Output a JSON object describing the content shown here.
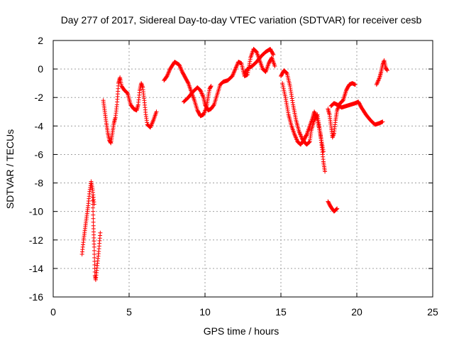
{
  "chart_data": {
    "type": "scatter",
    "title": "Day 277 of 2017, Sidereal Day-to-day VTEC variation (SDTVAR) for receiver cesb",
    "xlabel": "GPS time / hours",
    "ylabel": "SDTVAR / TECUs",
    "xlim": [
      0,
      25
    ],
    "ylim": [
      -16,
      2
    ],
    "xticks": [
      0,
      5,
      10,
      15,
      20,
      25
    ],
    "yticks": [
      -16,
      -14,
      -12,
      -10,
      -8,
      -6,
      -4,
      -2,
      0,
      2
    ],
    "xtick_labels": [
      "0",
      "5",
      "10",
      "15",
      "20",
      "25"
    ],
    "ytick_labels": [
      "-16",
      "-14",
      "-12",
      "-10",
      "-8",
      "-6",
      "-4",
      "-2",
      "0",
      "2"
    ],
    "grid": true,
    "marker": "plus",
    "color": "#ff0000",
    "segments": [
      [
        [
          1.9,
          -13.0
        ],
        [
          2.0,
          -12.0
        ],
        [
          2.1,
          -11.2
        ],
        [
          2.2,
          -10.4
        ],
        [
          2.3,
          -9.6
        ],
        [
          2.4,
          -8.6
        ],
        [
          2.5,
          -7.9
        ],
        [
          2.6,
          -8.5
        ],
        [
          2.7,
          -9.5
        ]
      ],
      [
        [
          2.6,
          -9.0
        ],
        [
          2.65,
          -11.0
        ],
        [
          2.7,
          -12.5
        ],
        [
          2.75,
          -14.5
        ],
        [
          2.8,
          -14.8
        ],
        [
          2.9,
          -13.8
        ],
        [
          3.0,
          -12.8
        ],
        [
          3.1,
          -11.5
        ]
      ],
      [
        [
          3.3,
          -2.2
        ],
        [
          3.4,
          -3.0
        ],
        [
          3.5,
          -3.8
        ],
        [
          3.6,
          -4.5
        ],
        [
          3.7,
          -5.0
        ],
        [
          3.8,
          -5.2
        ],
        [
          3.9,
          -4.5
        ],
        [
          4.0,
          -3.8
        ],
        [
          4.1,
          -3.4
        ],
        [
          4.2,
          -2.5
        ],
        [
          4.3,
          -1.0
        ],
        [
          4.4,
          -0.6
        ],
        [
          4.5,
          -1.2
        ],
        [
          4.7,
          -1.5
        ],
        [
          4.9,
          -1.7
        ],
        [
          5.1,
          -2.5
        ],
        [
          5.3,
          -2.8
        ],
        [
          5.5,
          -2.9
        ],
        [
          5.6,
          -2.5
        ],
        [
          5.7,
          -1.5
        ],
        [
          5.8,
          -1.0
        ],
        [
          5.9,
          -1.3
        ],
        [
          6.0,
          -2.2
        ],
        [
          6.1,
          -3.2
        ],
        [
          6.2,
          -3.9
        ],
        [
          6.4,
          -4.1
        ],
        [
          6.6,
          -3.6
        ],
        [
          6.8,
          -3.0
        ]
      ],
      [
        [
          7.3,
          -0.8
        ],
        [
          7.5,
          -0.5
        ],
        [
          7.7,
          0.0
        ],
        [
          8.0,
          0.5
        ],
        [
          8.3,
          0.3
        ],
        [
          8.5,
          -0.2
        ],
        [
          8.7,
          -0.6
        ],
        [
          8.9,
          -1.0
        ],
        [
          9.1,
          -1.6
        ],
        [
          9.3,
          -2.2
        ],
        [
          9.5,
          -2.9
        ],
        [
          9.7,
          -3.3
        ],
        [
          9.9,
          -3.2
        ],
        [
          10.1,
          -2.7
        ],
        [
          10.2,
          -2.0
        ],
        [
          10.3,
          -1.4
        ],
        [
          10.4,
          -1.2
        ]
      ],
      [
        [
          8.6,
          -2.3
        ],
        [
          8.9,
          -2.0
        ],
        [
          9.2,
          -1.6
        ],
        [
          9.5,
          -1.3
        ],
        [
          9.7,
          -1.5
        ],
        [
          9.9,
          -2.0
        ],
        [
          10.0,
          -2.5
        ],
        [
          10.2,
          -2.9
        ],
        [
          10.4,
          -2.8
        ],
        [
          10.6,
          -2.5
        ],
        [
          10.8,
          -1.8
        ],
        [
          11.0,
          -1.1
        ],
        [
          11.2,
          -0.9
        ],
        [
          11.5,
          -0.8
        ],
        [
          11.8,
          -0.5
        ],
        [
          12.0,
          0.0
        ],
        [
          12.2,
          0.5
        ],
        [
          12.4,
          0.4
        ],
        [
          12.6,
          -0.5
        ],
        [
          12.8,
          -0.4
        ],
        [
          13.0,
          0.8
        ],
        [
          13.2,
          1.4
        ],
        [
          13.4,
          1.2
        ],
        [
          13.6,
          0.6
        ],
        [
          13.8,
          0.0
        ],
        [
          14.0,
          -0.2
        ],
        [
          14.2,
          0.4
        ],
        [
          14.4,
          0.8
        ],
        [
          14.6,
          0.2
        ]
      ],
      [
        [
          12.6,
          -0.3
        ],
        [
          12.8,
          0.0
        ],
        [
          13.1,
          0.2
        ],
        [
          13.4,
          0.5
        ],
        [
          13.7,
          0.9
        ],
        [
          14.0,
          1.2
        ],
        [
          14.3,
          1.4
        ],
        [
          14.5,
          1.0
        ]
      ],
      [
        [
          15.0,
          -0.5
        ],
        [
          15.2,
          -0.1
        ],
        [
          15.4,
          -0.3
        ],
        [
          15.6,
          -1.2
        ],
        [
          15.8,
          -2.5
        ],
        [
          16.0,
          -3.6
        ],
        [
          16.2,
          -4.4
        ],
        [
          16.4,
          -4.9
        ],
        [
          16.6,
          -5.2
        ],
        [
          16.7,
          -5.3
        ],
        [
          16.9,
          -5.1
        ],
        [
          17.0,
          -4.3
        ],
        [
          17.2,
          -3.6
        ],
        [
          17.4,
          -3.2
        ],
        [
          17.6,
          -4.5
        ],
        [
          17.7,
          -5.5
        ],
        [
          17.8,
          -6.5
        ],
        [
          17.9,
          -7.2
        ]
      ],
      [
        [
          15.1,
          -1.0
        ],
        [
          15.3,
          -2.0
        ],
        [
          15.5,
          -3.2
        ],
        [
          15.7,
          -4.0
        ],
        [
          15.9,
          -4.6
        ],
        [
          16.1,
          -5.1
        ],
        [
          16.3,
          -5.3
        ],
        [
          16.5,
          -5.0
        ],
        [
          16.7,
          -4.6
        ],
        [
          16.9,
          -4.0
        ],
        [
          17.1,
          -3.4
        ],
        [
          17.2,
          -3.0
        ],
        [
          17.4,
          -3.5
        ],
        [
          17.6,
          -4.6
        ],
        [
          17.8,
          -5.8
        ]
      ],
      [
        [
          18.1,
          -9.3
        ],
        [
          18.3,
          -9.7
        ],
        [
          18.5,
          -10.0
        ],
        [
          18.7,
          -9.8
        ]
      ],
      [
        [
          18.1,
          -2.8
        ],
        [
          18.2,
          -3.2
        ],
        [
          18.3,
          -4.0
        ],
        [
          18.4,
          -4.8
        ],
        [
          18.5,
          -4.5
        ],
        [
          18.6,
          -3.6
        ],
        [
          18.7,
          -2.9
        ],
        [
          18.9,
          -2.4
        ],
        [
          19.1,
          -2.2
        ],
        [
          19.3,
          -1.5
        ],
        [
          19.5,
          -1.1
        ],
        [
          19.7,
          -1.0
        ],
        [
          19.9,
          -1.1
        ]
      ],
      [
        [
          18.3,
          -2.6
        ],
        [
          18.5,
          -2.4
        ],
        [
          18.7,
          -2.5
        ],
        [
          19.0,
          -2.7
        ],
        [
          19.3,
          -2.6
        ],
        [
          19.6,
          -2.5
        ],
        [
          19.9,
          -2.4
        ],
        [
          20.1,
          -2.3
        ],
        [
          20.3,
          -2.7
        ],
        [
          20.6,
          -3.2
        ],
        [
          20.9,
          -3.6
        ],
        [
          21.2,
          -3.9
        ],
        [
          21.5,
          -3.8
        ],
        [
          21.7,
          -3.7
        ]
      ],
      [
        [
          21.3,
          -1.1
        ],
        [
          21.5,
          -0.6
        ],
        [
          21.6,
          -0.2
        ],
        [
          21.7,
          0.3
        ],
        [
          21.8,
          0.6
        ],
        [
          21.9,
          0.1
        ],
        [
          22.0,
          -0.1
        ]
      ]
    ]
  }
}
